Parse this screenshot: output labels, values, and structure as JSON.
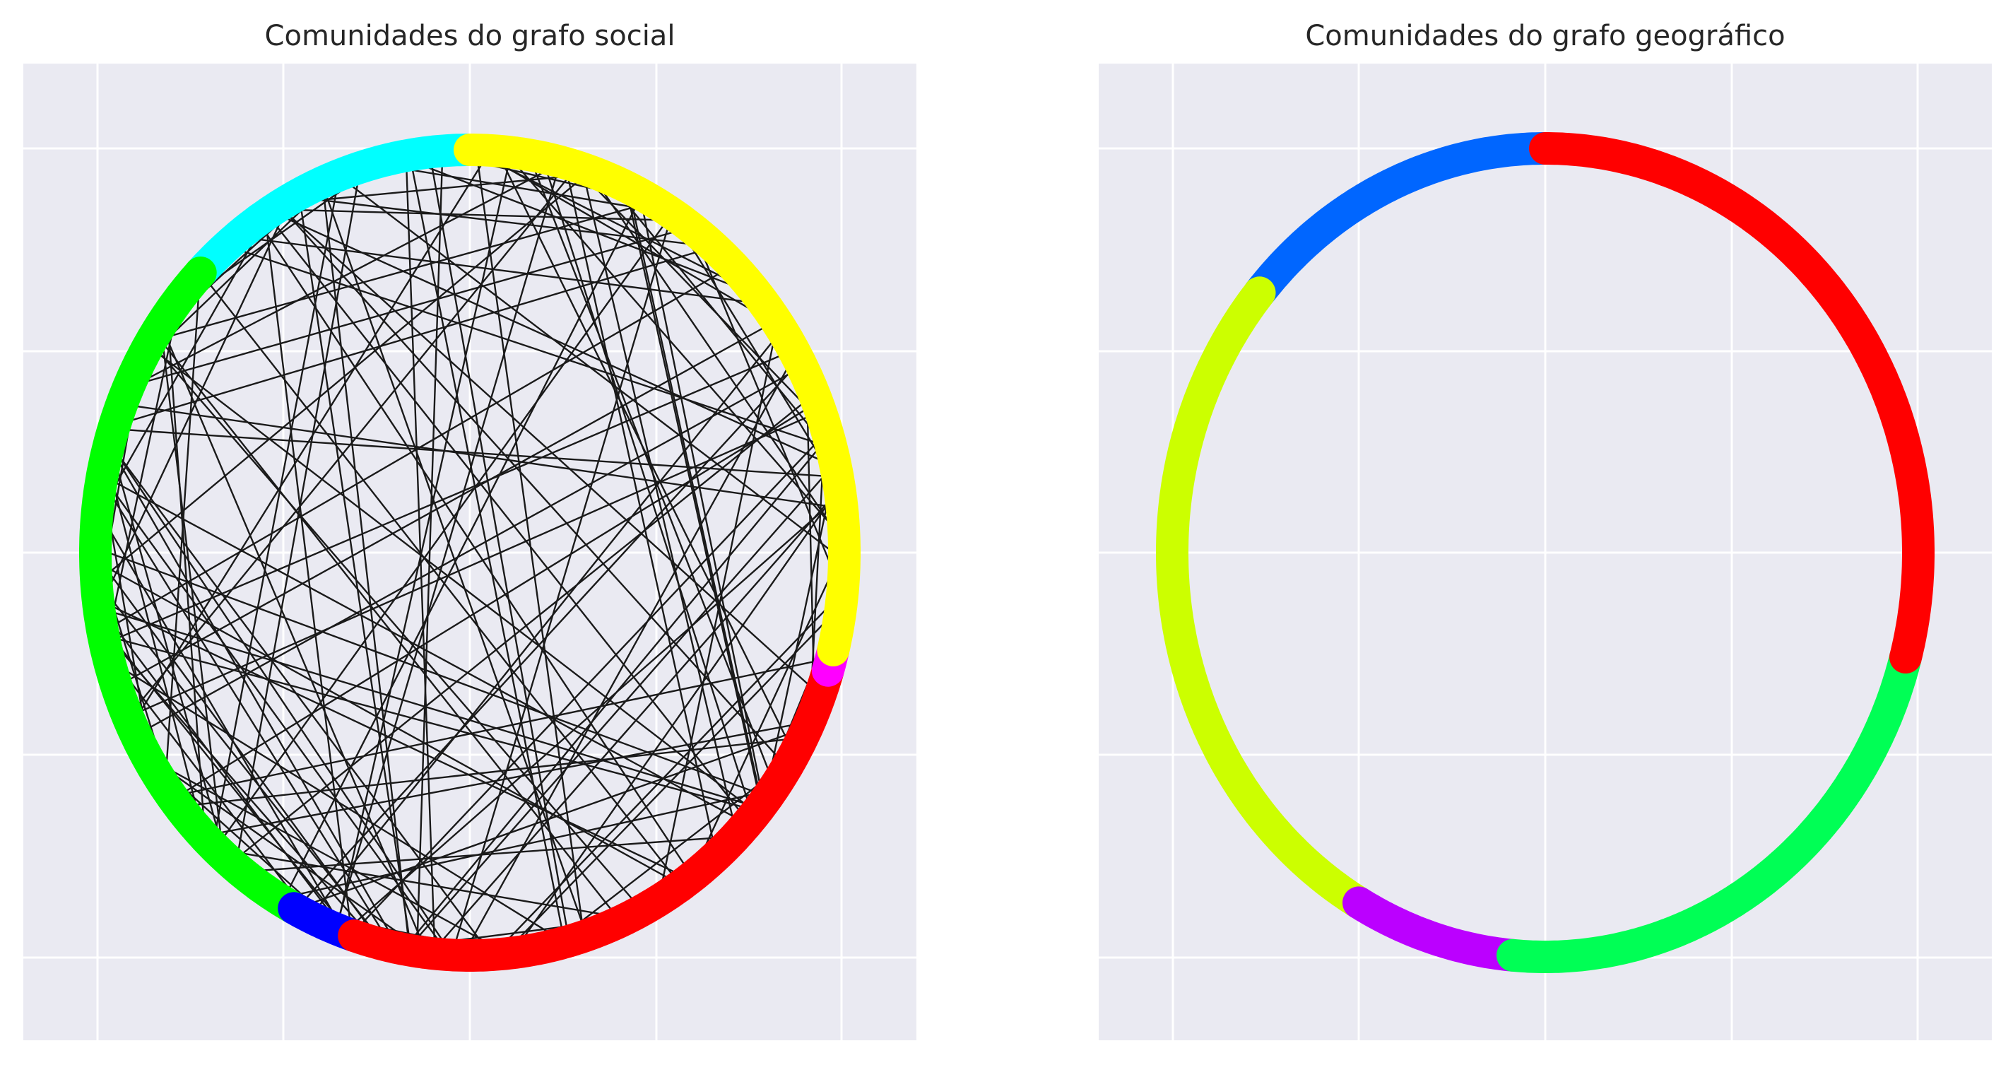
{
  "chart_data": [
    {
      "type": "network",
      "title": "Comunidades do grafo social",
      "xlabel": "",
      "ylabel": "",
      "grid": true,
      "layout": "circular",
      "communities": [
        {
          "color": "#00ffff",
          "start_deg": 90,
          "end_deg": 136
        },
        {
          "color": "#00ff00",
          "start_deg": 136,
          "end_deg": 242
        },
        {
          "color": "#0000ff",
          "start_deg": 242,
          "end_deg": 252
        },
        {
          "color": "#ff0000",
          "start_deg": 252,
          "end_deg": 343
        },
        {
          "color": "#ff00ff",
          "start_deg": 343,
          "end_deg": 346
        },
        {
          "color": "#ffff00",
          "start_deg": 346,
          "end_deg": 450
        }
      ],
      "edge_color": "#1a1a1a",
      "edge_count": 160
    },
    {
      "type": "network",
      "title": "Comunidades do grafo geográfico",
      "xlabel": "",
      "ylabel": "",
      "grid": true,
      "layout": "circular",
      "communities": [
        {
          "color": "#0066ff",
          "start_deg": 90,
          "end_deg": 140
        },
        {
          "color": "#ccff00",
          "start_deg": 140,
          "end_deg": 240
        },
        {
          "color": "#bb00ff",
          "start_deg": 240,
          "end_deg": 265
        },
        {
          "color": "#00ff55",
          "start_deg": 265,
          "end_deg": 345
        },
        {
          "color": "#ff0000",
          "start_deg": 345,
          "end_deg": 450
        }
      ],
      "edge_color": "#1a1a1a",
      "edge_count": 0
    }
  ]
}
